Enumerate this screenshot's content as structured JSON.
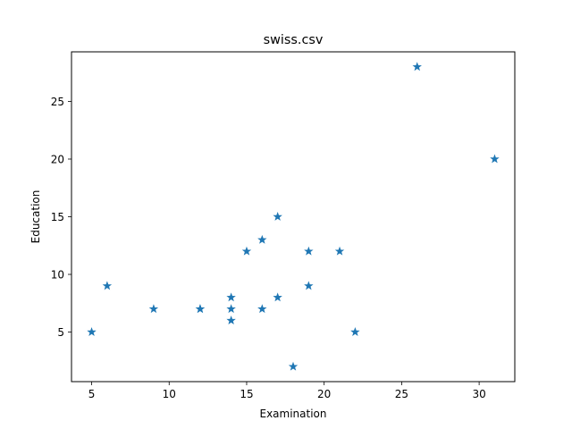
{
  "chart_data": {
    "type": "scatter",
    "title": "swiss.csv",
    "xlabel": "Examination",
    "ylabel": "Education",
    "xlim": [
      3.7,
      32.3
    ],
    "ylim": [
      0.7,
      29.3
    ],
    "xticks": [
      5,
      10,
      15,
      20,
      25,
      30
    ],
    "yticks": [
      5,
      10,
      15,
      20,
      25
    ],
    "grid": false,
    "marker": "star",
    "color": "#1f77b4",
    "points": [
      {
        "x": 5,
        "y": 5
      },
      {
        "x": 6,
        "y": 9
      },
      {
        "x": 9,
        "y": 7
      },
      {
        "x": 12,
        "y": 7
      },
      {
        "x": 12,
        "y": 7
      },
      {
        "x": 14,
        "y": 8
      },
      {
        "x": 14,
        "y": 7
      },
      {
        "x": 14,
        "y": 6
      },
      {
        "x": 15,
        "y": 12
      },
      {
        "x": 16,
        "y": 13
      },
      {
        "x": 16,
        "y": 7
      },
      {
        "x": 17,
        "y": 15
      },
      {
        "x": 17,
        "y": 8
      },
      {
        "x": 18,
        "y": 2
      },
      {
        "x": 19,
        "y": 12
      },
      {
        "x": 19,
        "y": 9
      },
      {
        "x": 21,
        "y": 12
      },
      {
        "x": 22,
        "y": 5
      },
      {
        "x": 26,
        "y": 28
      },
      {
        "x": 31,
        "y": 20
      }
    ]
  }
}
